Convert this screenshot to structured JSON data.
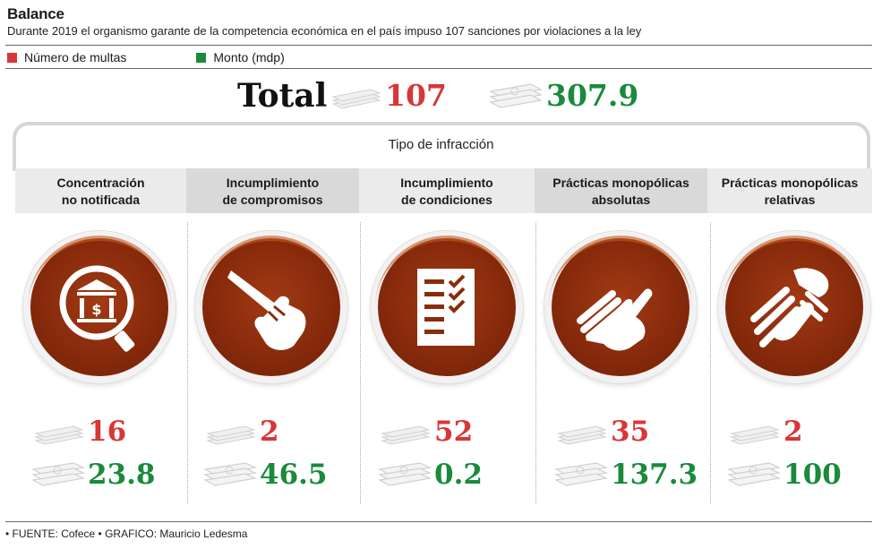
{
  "header": {
    "title": "Balance",
    "subtitle": "Durante 2019 el organismo garante de la competencia económica en el país impuso 107 sanciones por violaciones a la ley"
  },
  "legend": {
    "multas_label": "Número de multas",
    "monto_label": "Monto (mdp)",
    "multas_color": "#d93637",
    "monto_color": "#1a8a3c"
  },
  "totals": {
    "label": "Total",
    "multas": "107",
    "monto": "307.9"
  },
  "category_group_label": "Tipo de infracción",
  "categories": [
    {
      "line1": "Concentración",
      "line2": "no notificada",
      "icon": "bank-magnifier-icon",
      "multas": "16",
      "monto": "23.8"
    },
    {
      "line1": "Incumplimiento",
      "line2": "de compromisos",
      "icon": "pointing-hand-icon",
      "multas": "2",
      "monto": "46.5"
    },
    {
      "line1": "Incumplimiento",
      "line2": "de condiciones",
      "icon": "checklist-icon",
      "multas": "52",
      "monto": "0.2"
    },
    {
      "line1": "Prácticas monopólicas",
      "line2": "absolutas",
      "icon": "hand-icon",
      "multas": "35",
      "monto": "137.3"
    },
    {
      "line1": "Prácticas monopólicas",
      "line2": "relativas",
      "icon": "handshake-icon",
      "multas": "2",
      "monto": "100"
    }
  ],
  "source": "• FUENTE: Cofece • GRAFICO: Mauricio Ledesma"
}
